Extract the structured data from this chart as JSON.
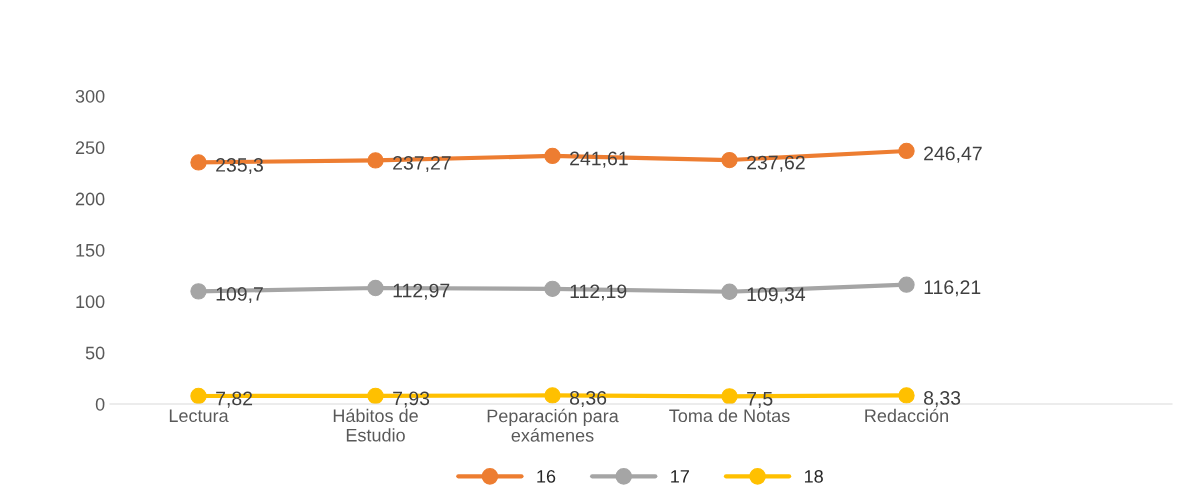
{
  "chart_data": {
    "type": "line",
    "categories": [
      "Lectura",
      "Hábitos de Estudio",
      "Peparación para exámenes",
      "Toma de Notas",
      "Redacción"
    ],
    "series": [
      {
        "name": "16",
        "color": "#ed7d31",
        "values": [
          235.3,
          237.27,
          241.61,
          237.62,
          246.47
        ],
        "value_labels": [
          "235,3",
          "237,27",
          "241,61",
          "237,62",
          "246,47"
        ]
      },
      {
        "name": "17",
        "color": "#a5a5a5",
        "values": [
          109.7,
          112.97,
          112.19,
          109.34,
          116.21
        ],
        "value_labels": [
          "109,7",
          "112,97",
          "112,19",
          "109,34",
          "116,21"
        ]
      },
      {
        "name": "18",
        "color": "#ffc000",
        "values": [
          7.82,
          7.93,
          8.36,
          7.5,
          8.33
        ],
        "value_labels": [
          "7,82",
          "7,93",
          "8,36",
          "7,5",
          "8,33"
        ]
      }
    ],
    "ylim": [
      0,
      300
    ],
    "yticks": [
      0,
      50,
      100,
      150,
      200,
      250,
      300
    ],
    "grid": false,
    "legend": "bottom",
    "marker": "circle",
    "line_style": "solid"
  }
}
